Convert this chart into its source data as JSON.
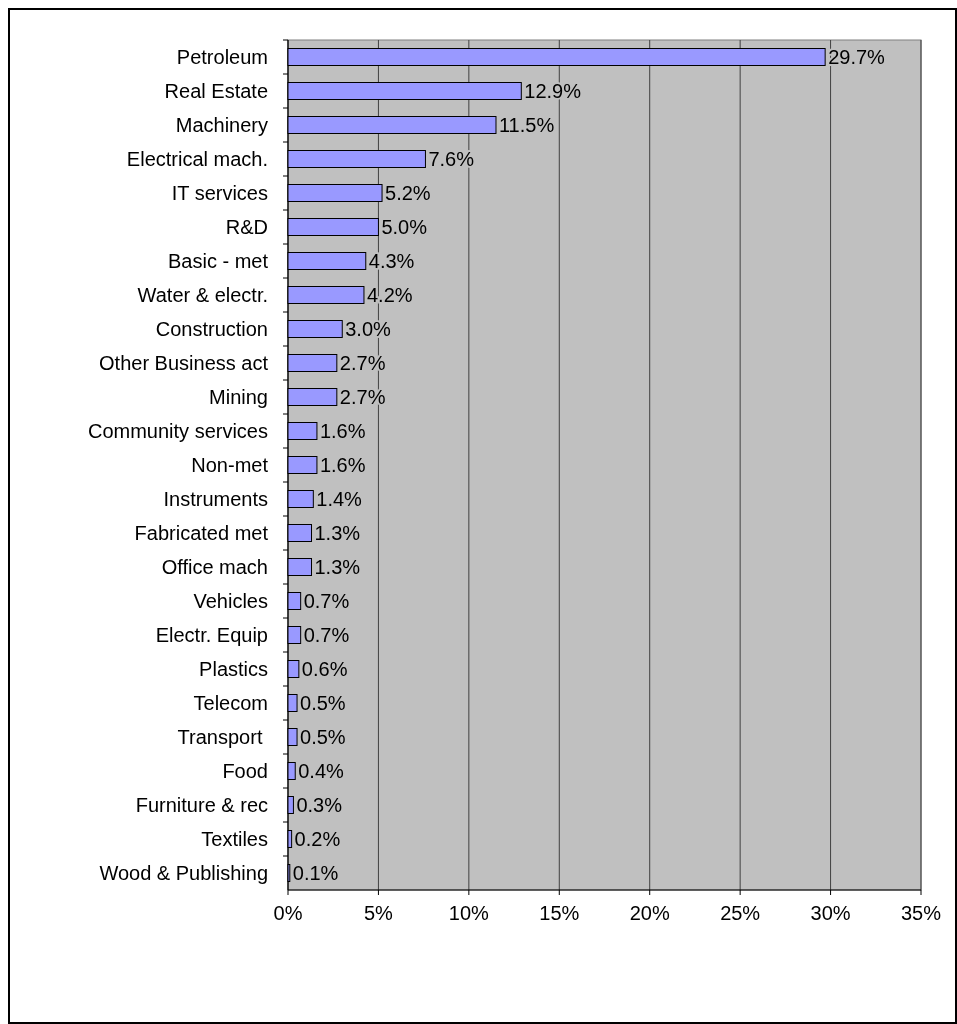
{
  "chart_data": {
    "type": "bar",
    "orientation": "horizontal",
    "categories": [
      "Petroleum",
      "Real Estate",
      "Machinery",
      "Electrical mach.",
      "IT services",
      "R&D",
      "Basic - met",
      "Water & electr.",
      "Construction",
      "Other Business act",
      "Mining",
      "Community services",
      "Non-met",
      "Instruments",
      "Fabricated met",
      "Office mach",
      "Vehicles",
      "Electr. Equip",
      "Plastics",
      "Telecom",
      "Transport ",
      "Food",
      "Furniture & rec",
      "Textiles",
      "Wood & Publishing"
    ],
    "values": [
      29.7,
      12.9,
      11.5,
      7.6,
      5.2,
      5.0,
      4.3,
      4.2,
      3.0,
      2.7,
      2.7,
      1.6,
      1.6,
      1.4,
      1.3,
      1.3,
      0.7,
      0.7,
      0.6,
      0.5,
      0.5,
      0.4,
      0.3,
      0.2,
      0.1
    ],
    "value_labels": [
      "29.7%",
      "12.9%",
      "11.5%",
      "7.6%",
      "5.2%",
      "5.0%",
      "4.3%",
      "4.2%",
      "3.0%",
      "2.7%",
      "2.7%",
      "1.6%",
      "1.6%",
      "1.4%",
      "1.3%",
      "1.3%",
      "0.7%",
      "0.7%",
      "0.6%",
      "0.5%",
      "0.5%",
      "0.4%",
      "0.3%",
      "0.2%",
      "0.1%"
    ],
    "color": "#9999ff",
    "xlim": [
      0,
      35
    ],
    "xticks": [
      {
        "value": 0,
        "label": "0%"
      },
      {
        "value": 5,
        "label": "5%"
      },
      {
        "value": 10,
        "label": "10%"
      },
      {
        "value": 15,
        "label": "15%"
      },
      {
        "value": 20,
        "label": "20%"
      },
      {
        "value": 25,
        "label": "25%"
      },
      {
        "value": 30,
        "label": "30%"
      },
      {
        "value": 35,
        "label": "35%"
      }
    ],
    "grid": "x"
  }
}
